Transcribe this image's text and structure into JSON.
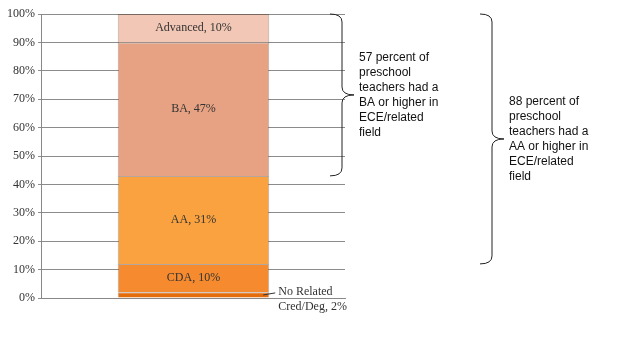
{
  "chart_data": {
    "type": "bar",
    "stacked": true,
    "categories": [
      null
    ],
    "series": [
      {
        "name": "No Related Cred/Deg",
        "color": "#e46c0a",
        "values": [
          2
        ],
        "value_labels": [
          "No Related Cred/Deg, 2%"
        ]
      },
      {
        "name": "CDA",
        "color": "#f58b2e",
        "values": [
          10
        ],
        "value_labels": [
          "CDA, 10%"
        ]
      },
      {
        "name": "AA",
        "color": "#f9a23f",
        "values": [
          31
        ],
        "value_labels": [
          "AA, 31%"
        ]
      },
      {
        "name": "BA",
        "color": "#e6a282",
        "values": [
          47
        ],
        "value_labels": [
          "BA, 47%"
        ]
      },
      {
        "name": "Advanced",
        "color": "#f2c7b5",
        "values": [
          10
        ],
        "value_labels": [
          "Advanced, 10%"
        ]
      }
    ],
    "ylim": [
      0,
      100
    ],
    "yticks": [
      {
        "value": 0,
        "label": "0%"
      },
      {
        "value": 10,
        "label": "10%"
      },
      {
        "value": 20,
        "label": "20%"
      },
      {
        "value": 30,
        "label": "30%"
      },
      {
        "value": 40,
        "label": "40%"
      },
      {
        "value": 50,
        "label": "50%"
      },
      {
        "value": 60,
        "label": "60%"
      },
      {
        "value": 70,
        "label": "70%"
      },
      {
        "value": 80,
        "label": "80%"
      },
      {
        "value": 90,
        "label": "90%"
      },
      {
        "value": 100,
        "label": "100%"
      }
    ],
    "grid": true,
    "data_labels": true,
    "annotations": [
      {
        "lines": [
          "57 percent of",
          "preschool",
          "teachers had a",
          "BA or higher in",
          "ECE/related",
          "field"
        ],
        "covers": [
          "BA",
          "Advanced"
        ]
      },
      {
        "lines": [
          "88 percent of",
          "preschool",
          "teachers had a",
          "AA or higher in",
          "ECE/related",
          "field"
        ],
        "covers": [
          "AA",
          "BA",
          "Advanced"
        ]
      }
    ]
  }
}
